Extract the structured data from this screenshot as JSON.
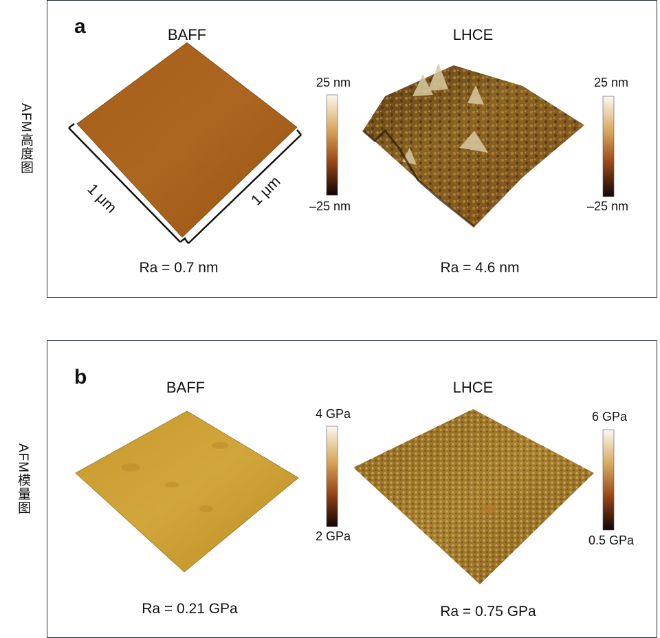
{
  "panel_a": {
    "letter": "a",
    "side_label": "AFM高度图",
    "left_title": "BAFF",
    "right_title": "LHCE",
    "left_ra": "Ra = 0.7 nm",
    "right_ra": "Ra = 4.6 nm",
    "scale_left": "1 μm",
    "scale_right": "1 μm",
    "colorbar1": {
      "top": "25 nm",
      "bottom": "–25 nm"
    },
    "colorbar2": {
      "top": "25 nm",
      "bottom": "–25 nm"
    }
  },
  "panel_b": {
    "letter": "b",
    "side_label": "AFM模量图",
    "left_title": "BAFF",
    "right_title": "LHCE",
    "left_ra": "Ra = 0.21 GPa",
    "right_ra": "Ra = 0.75 GPa",
    "colorbar1": {
      "top": "4 GPa",
      "bottom": "2 GPa"
    },
    "colorbar2": {
      "top": "6 GPa",
      "bottom": "0.5 GPa"
    }
  },
  "colors": {
    "frame": "#1d2a36",
    "height_surface": "#a8621a",
    "modulus_surface": "#c79a2e",
    "colorbar_top": "#fbf8f0",
    "colorbar_mid": "#a3591f",
    "colorbar_bottom": "#120404"
  }
}
